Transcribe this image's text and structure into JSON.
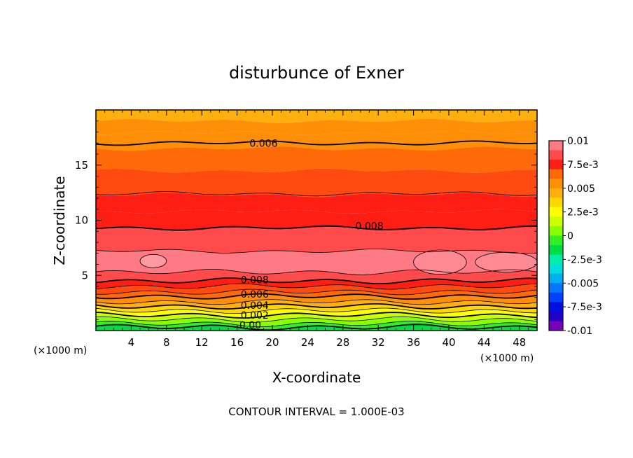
{
  "chart_data": {
    "type": "contour",
    "title": "disturbunce of Exner",
    "xlabel": "X-coordinate",
    "ylabel": "Z-coordinate",
    "x_unit": "(×1000 m)",
    "z_unit": "(×1000 m)",
    "xlim": [
      0,
      50
    ],
    "ylim": [
      0,
      20
    ],
    "x_ticks": [
      "4",
      "8",
      "12",
      "16",
      "20",
      "24",
      "28",
      "32",
      "36",
      "40",
      "44",
      "48"
    ],
    "y_ticks": [
      "5",
      "10",
      "15"
    ],
    "contour_interval_text": "CONTOUR INTERVAL = 1.000E-03",
    "colorbar": {
      "labels": [
        "0.01",
        "7.5e-3",
        "0.005",
        "2.5e-3",
        "0",
        "-2.5e-3",
        "-0.005",
        "-7.5e-3",
        "-0.01"
      ],
      "colors": [
        "#ff7a84",
        "#ff4b4b",
        "#ff1e14",
        "#ff6a08",
        "#ff8f06",
        "#ffb00e",
        "#ffd800",
        "#ffff00",
        "#ccff00",
        "#88ff00",
        "#33ee22",
        "#00dd44",
        "#00eeaa",
        "#00dddd",
        "#00b0ee",
        "#0078ff",
        "#0040ff",
        "#0010e0",
        "#2200c8",
        "#7700b8"
      ]
    },
    "contour_labels": [
      {
        "text": "0.006",
        "x": 19.0,
        "z": 17.0
      },
      {
        "text": "0.008",
        "x": 31.0,
        "z": 9.5
      },
      {
        "text": "0.008",
        "x": 18.0,
        "z": 4.6
      },
      {
        "text": "0.006",
        "x": 18.0,
        "z": 3.3
      },
      {
        "text": "0.004",
        "x": 18.0,
        "z": 2.3
      },
      {
        "text": "0.002",
        "x": 18.0,
        "z": 1.4
      },
      {
        "text": "0.00",
        "x": 17.5,
        "z": 0.5
      }
    ],
    "bands": [
      {
        "z0": 19.0,
        "z1": 20.0,
        "color": "#ffb00e"
      },
      {
        "z0": 17.9,
        "z1": 19.0,
        "color": "#ff8f06"
      },
      {
        "z0": 16.5,
        "z1": 17.9,
        "color": "#ff8f06"
      },
      {
        "z0": 14.5,
        "z1": 16.5,
        "color": "#ff6a08"
      },
      {
        "z0": 12.3,
        "z1": 14.5,
        "color": "#ff4b10"
      },
      {
        "z0": 10.8,
        "z1": 12.3,
        "color": "#ff1e14"
      },
      {
        "z0": 9.2,
        "z1": 10.8,
        "color": "#ff1e14"
      },
      {
        "z0": 7.2,
        "z1": 9.2,
        "color": "#ff4b4b"
      },
      {
        "z0": 5.3,
        "z1": 7.2,
        "color": "#ff7a84"
      },
      {
        "z0": 4.5,
        "z1": 5.3,
        "color": "#ff4b4b"
      },
      {
        "z0": 4.0,
        "z1": 4.5,
        "color": "#ff1e14"
      },
      {
        "z0": 3.5,
        "z1": 4.0,
        "color": "#ff4b10"
      },
      {
        "z0": 3.0,
        "z1": 3.5,
        "color": "#ff6a08"
      },
      {
        "z0": 2.6,
        "z1": 3.0,
        "color": "#ff8f06"
      },
      {
        "z0": 2.2,
        "z1": 2.6,
        "color": "#ffb00e"
      },
      {
        "z0": 1.8,
        "z1": 2.2,
        "color": "#ffd800"
      },
      {
        "z0": 1.4,
        "z1": 1.8,
        "color": "#ffff00"
      },
      {
        "z0": 1.0,
        "z1": 1.4,
        "color": "#ccff00"
      },
      {
        "z0": 0.6,
        "z1": 1.0,
        "color": "#88ff00"
      },
      {
        "z0": 0.3,
        "z1": 0.6,
        "color": "#33ee22"
      },
      {
        "z0": 0.0,
        "z1": 0.3,
        "color": "#00dd44"
      }
    ],
    "contour_lines": [
      {
        "z": 17.0,
        "bold": true
      },
      {
        "z": 12.4,
        "bold": false
      },
      {
        "z": 9.3,
        "bold": true
      },
      {
        "z": 7.2,
        "bold": false
      },
      {
        "z": 5.3,
        "bold": false
      },
      {
        "z": 4.5,
        "bold": true
      },
      {
        "z": 4.0,
        "bold": false
      },
      {
        "z": 3.5,
        "bold": false
      },
      {
        "z": 3.1,
        "bold": true
      },
      {
        "z": 2.6,
        "bold": false
      },
      {
        "z": 2.2,
        "bold": true
      },
      {
        "z": 1.8,
        "bold": false
      },
      {
        "z": 1.4,
        "bold": true
      },
      {
        "z": 1.0,
        "bold": false
      },
      {
        "z": 0.6,
        "bold": false
      },
      {
        "z": 0.3,
        "bold": true
      }
    ],
    "high_cells": [
      {
        "x": 6.5,
        "z": 6.3,
        "rx": 1.5,
        "rz": 0.6,
        "color": "#ff9aa2"
      },
      {
        "x": 39.0,
        "z": 6.2,
        "rx": 3.0,
        "rz": 1.1,
        "color": "#ff8a94"
      },
      {
        "x": 46.5,
        "z": 6.2,
        "rx": 3.5,
        "rz": 0.9,
        "color": "#ff8a94"
      }
    ]
  }
}
